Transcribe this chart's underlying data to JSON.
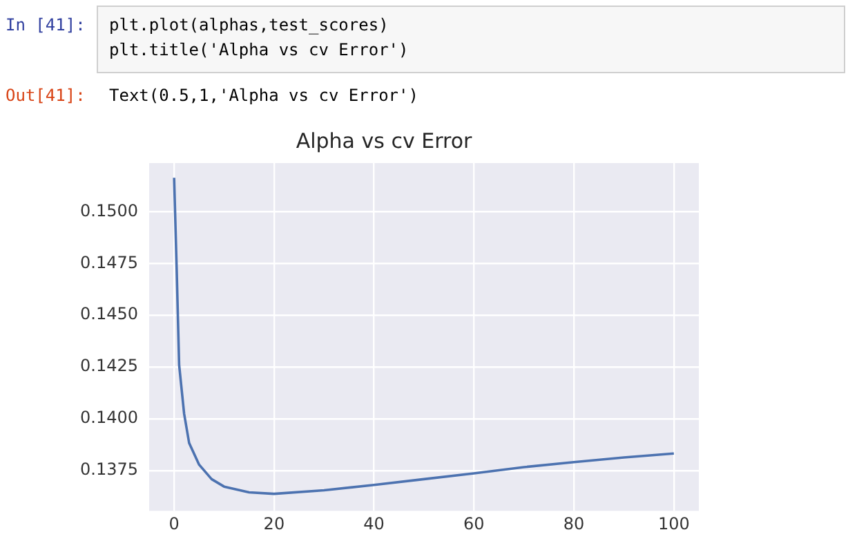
{
  "chart_data": {
    "type": "line",
    "title": "Alpha vs cv Error",
    "annotations": [
      "In [41]:",
      "plt.plot(alphas,test_scores)",
      "plt.title('Alpha vs cv Error')",
      "Out[41]:",
      "Text(0.5,1,'Alpha vs cv Error')"
    ],
    "x": [
      0,
      0.5,
      1,
      2,
      3,
      5,
      7.5,
      10,
      15,
      20,
      30,
      40,
      50,
      60,
      70,
      80,
      90,
      100
    ],
    "series": [
      {
        "color": "#4c72b0",
        "values": [
          0.15164,
          0.1473,
          0.1426,
          0.14024,
          0.13883,
          0.13778,
          0.13708,
          0.13672,
          0.13644,
          0.13637,
          0.13654,
          0.1368,
          0.13708,
          0.13736,
          0.13766,
          0.1379,
          0.13813,
          0.13832
        ]
      }
    ],
    "xlim": [
      -5,
      105
    ],
    "xticks": [
      0,
      20,
      40,
      60,
      80,
      100
    ],
    "ylim": [
      0.13555,
      0.15235
    ],
    "yticks": [
      {
        "value": 0.1375,
        "label": "0.1375"
      },
      {
        "value": 0.14,
        "label": "0.1400"
      },
      {
        "value": 0.1425,
        "label": "0.1425"
      },
      {
        "value": 0.145,
        "label": "0.1450"
      },
      {
        "value": 0.1475,
        "label": "0.1475"
      },
      {
        "value": 0.15,
        "label": "0.1500"
      }
    ],
    "grid": true,
    "legend": false,
    "marker": "none",
    "line_style": "solid"
  }
}
